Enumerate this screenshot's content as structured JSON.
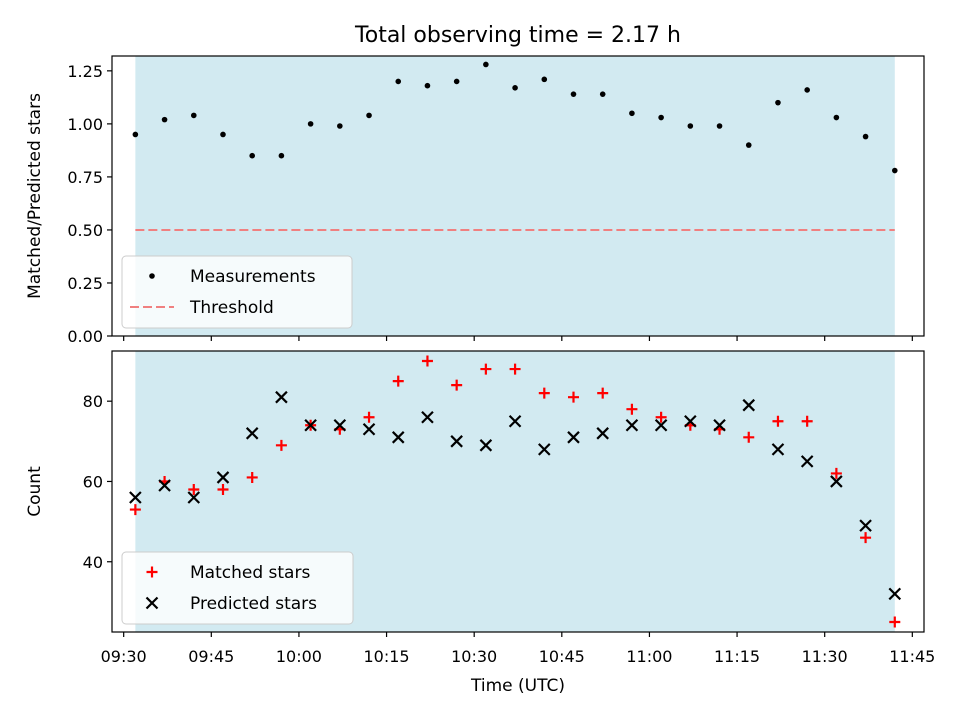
{
  "chart_data": {
    "type": "scatter",
    "title": "Total observing time = 2.17 h",
    "xlabel": "Time (UTC)",
    "x_ticks": [
      "09:30",
      "09:45",
      "10:00",
      "10:15",
      "10:30",
      "10:45",
      "11:00",
      "11:15",
      "11:30",
      "11:45"
    ],
    "x_times": [
      "09:32",
      "09:37",
      "09:42",
      "09:47",
      "09:52",
      "09:57",
      "10:02",
      "10:07",
      "10:12",
      "10:17",
      "10:22",
      "10:27",
      "10:32",
      "10:37",
      "10:42",
      "10:47",
      "10:52",
      "10:57",
      "11:02",
      "11:07",
      "11:12",
      "11:17",
      "11:22",
      "11:27",
      "11:32",
      "11:37",
      "11:42"
    ],
    "xlim": [
      "09:28",
      "11:47"
    ],
    "observing_window": [
      "09:32",
      "11:42"
    ],
    "shade_color": "#add8e6",
    "panels": [
      {
        "ylabel": "Matched/Predicted stars",
        "ylim": [
          0,
          1.32
        ],
        "y_ticks": [
          "0.00",
          "0.25",
          "0.50",
          "0.75",
          "1.00",
          "1.25"
        ],
        "legend_position": "lower-left",
        "series": [
          {
            "name": "Measurements",
            "marker": "dot",
            "color": "#000000",
            "values": [
              0.95,
              1.02,
              1.04,
              0.95,
              0.85,
              0.85,
              1.0,
              0.99,
              1.04,
              1.2,
              1.18,
              1.2,
              1.28,
              1.17,
              1.21,
              1.14,
              1.14,
              1.05,
              1.03,
              0.99,
              0.99,
              0.9,
              1.1,
              1.16,
              1.03,
              0.94,
              0.78
            ]
          },
          {
            "name": "Threshold",
            "marker": "dashed-line",
            "color": "#f08080",
            "value": 0.5
          }
        ]
      },
      {
        "ylabel": "Count",
        "ylim": [
          22.5,
          92.5
        ],
        "y_ticks": [
          "40",
          "60",
          "80"
        ],
        "legend_position": "lower-left",
        "series": [
          {
            "name": "Matched stars",
            "marker": "plus",
            "color": "#ff0000",
            "values": [
              53,
              60,
              58,
              58,
              61,
              69,
              74,
              73,
              76,
              85,
              90,
              84,
              88,
              88,
              82,
              81,
              82,
              78,
              76,
              74,
              73,
              71,
              75,
              75,
              62,
              46,
              25
            ]
          },
          {
            "name": "Predicted stars",
            "marker": "x",
            "color": "#000000",
            "values": [
              56,
              59,
              56,
              61,
              72,
              81,
              74,
              74,
              73,
              71,
              76,
              70,
              69,
              75,
              68,
              71,
              72,
              74,
              74,
              75,
              74,
              79,
              68,
              65,
              60,
              49,
              32
            ]
          }
        ]
      }
    ]
  }
}
